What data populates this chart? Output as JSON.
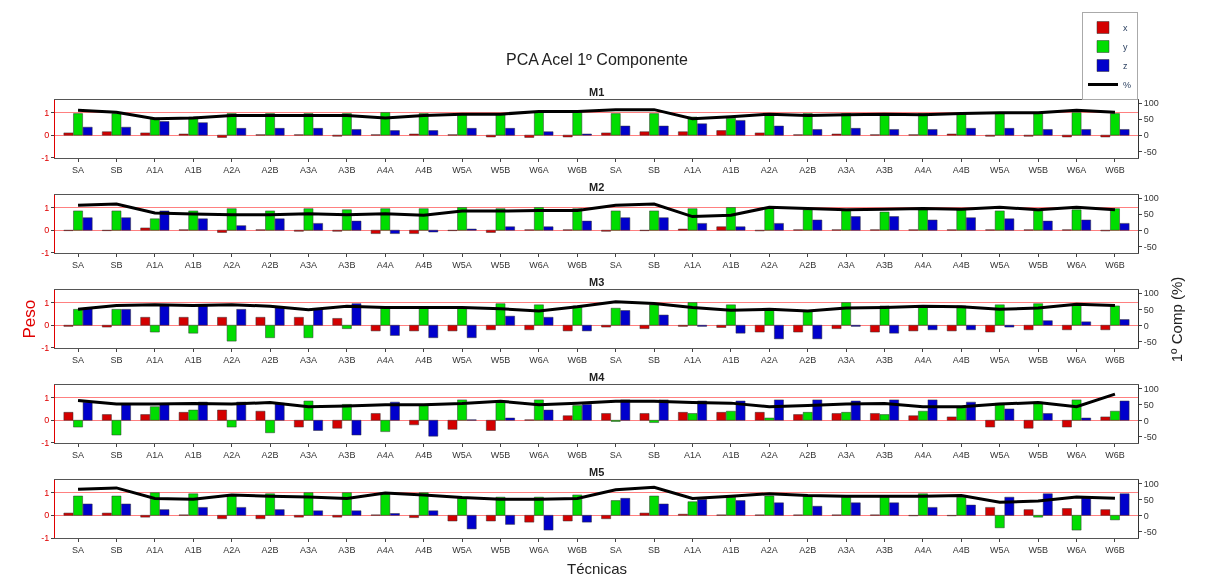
{
  "chart_data": [
    {
      "type": "bar",
      "title": "PCA Acel 1º Componente",
      "subtitle": "M1",
      "legend": "top right",
      "grid": "y",
      "ylim": [
        -1,
        1.55
      ],
      "yticks": [
        -1,
        0,
        1
      ],
      "y2lim": [
        -70,
        110
      ],
      "y2ticks": [
        -50,
        0,
        50,
        100
      ],
      "categories": [
        "SA",
        "SB",
        "A1A",
        "A1B",
        "A2A",
        "A2B",
        "A3A",
        "A3B",
        "A4A",
        "A4B",
        "W5A",
        "W5B",
        "W6A",
        "W6B",
        "SA",
        "SB",
        "A1A",
        "A1B",
        "A2A",
        "A2B",
        "A3A",
        "A3B",
        "A4A",
        "A4B",
        "W5A",
        "W5B",
        "W6A",
        "W6B"
      ],
      "series": [
        {
          "name": "x",
          "color": "#d40000",
          "values": [
            0.1,
            0.15,
            0.1,
            0.05,
            -0.1,
            0.02,
            0.02,
            -0.05,
            0.02,
            0.05,
            0.02,
            -0.08,
            -0.1,
            -0.08,
            0.1,
            0.15,
            0.15,
            0.2,
            0.1,
            0.02,
            0.05,
            0.02,
            0.02,
            0.05,
            -0.05,
            -0.05,
            -0.08,
            -0.08
          ]
        },
        {
          "name": "y",
          "color": "#00dd00",
          "values": [
            0.95,
            0.95,
            0.75,
            0.8,
            0.95,
            0.95,
            0.95,
            0.95,
            1.0,
            0.95,
            0.95,
            0.95,
            1.0,
            1.0,
            0.95,
            0.95,
            0.8,
            0.75,
            0.95,
            0.95,
            0.95,
            0.95,
            0.95,
            0.95,
            0.95,
            0.95,
            1.0,
            0.95
          ]
        },
        {
          "name": "z",
          "color": "#0000cc",
          "values": [
            0.35,
            0.35,
            0.6,
            0.55,
            0.3,
            0.3,
            0.3,
            0.25,
            0.2,
            0.2,
            0.3,
            0.3,
            0.15,
            0.05,
            0.4,
            0.4,
            0.5,
            0.65,
            0.4,
            0.25,
            0.3,
            0.25,
            0.25,
            0.3,
            0.3,
            0.25,
            0.25,
            0.25
          ]
        },
        {
          "name": "%",
          "color": "#000000",
          "type": "line",
          "axis": "y2",
          "values": [
            78,
            72,
            52,
            54,
            62,
            62,
            62,
            62,
            54,
            62,
            66,
            66,
            74,
            74,
            80,
            80,
            52,
            58,
            66,
            62,
            64,
            66,
            64,
            68,
            70,
            70,
            78,
            72
          ]
        }
      ]
    },
    {
      "type": "bar",
      "subtitle": "M2",
      "grid": "y",
      "ylim": [
        -1,
        1.55
      ],
      "yticks": [
        -1,
        0,
        1
      ],
      "y2lim": [
        -70,
        110
      ],
      "y2ticks": [
        -50,
        0,
        50,
        100
      ],
      "categories": [
        "SA",
        "SB",
        "A1A",
        "A1B",
        "A2A",
        "A2B",
        "A3A",
        "A3B",
        "A4A",
        "A4B",
        "W5A",
        "W5B",
        "W6A",
        "W6B",
        "SA",
        "SB",
        "A1A",
        "A1B",
        "A2A",
        "A2B",
        "A3A",
        "A3B",
        "A4A",
        "A4B",
        "W5A",
        "W5B",
        "W6A",
        "W6B"
      ],
      "series": [
        {
          "color": "#d40000",
          "values": [
            -0.02,
            -0.02,
            0.1,
            0.02,
            -0.1,
            0.02,
            -0.05,
            -0.05,
            -0.15,
            -0.15,
            -0.02,
            -0.1,
            0.02,
            0.02,
            -0.05,
            -0.02,
            0.05,
            0.15,
            -0.03,
            0.02,
            0.02,
            0.02,
            0.02,
            0.02,
            0.02,
            0.02,
            0.02,
            -0.03
          ]
        },
        {
          "color": "#00dd00",
          "values": [
            0.85,
            0.85,
            0.5,
            0.85,
            0.95,
            0.85,
            0.95,
            0.9,
            0.95,
            0.95,
            1.0,
            0.95,
            1.0,
            0.95,
            0.85,
            0.85,
            0.95,
            1.0,
            1.0,
            0.9,
            0.85,
            0.8,
            0.9,
            0.9,
            0.85,
            0.85,
            0.9,
            0.95
          ]
        },
        {
          "color": "#0000cc",
          "values": [
            0.55,
            0.55,
            0.85,
            0.5,
            0.2,
            0.5,
            0.3,
            0.4,
            -0.15,
            -0.08,
            0.05,
            0.15,
            0.15,
            0.4,
            0.55,
            0.55,
            0.3,
            0.15,
            0.3,
            0.45,
            0.6,
            0.6,
            0.45,
            0.55,
            0.5,
            0.4,
            0.45,
            0.3
          ]
        },
        {
          "color": "#000000",
          "type": "line",
          "axis": "y2",
          "values": [
            78,
            82,
            54,
            51,
            49,
            49,
            52,
            49,
            52,
            47,
            60,
            60,
            62,
            62,
            78,
            82,
            43,
            47,
            72,
            68,
            64,
            66,
            68,
            66,
            72,
            64,
            72,
            64
          ]
        }
      ]
    },
    {
      "type": "bar",
      "subtitle": "M3",
      "ylabel": "Peso",
      "y2label": "1º Comp (%)",
      "grid": "y",
      "ylim": [
        -1,
        1.55
      ],
      "yticks": [
        -1,
        0,
        1
      ],
      "y2lim": [
        -70,
        110
      ],
      "y2ticks": [
        -50,
        0,
        50,
        100
      ],
      "categories": [
        "SA",
        "SB",
        "A1A",
        "A1B",
        "A2A",
        "A2B",
        "A3A",
        "A3B",
        "A4A",
        "A4B",
        "W5A",
        "W5B",
        "W6A",
        "W6B",
        "SA",
        "SB",
        "A1A",
        "A1B",
        "A2A",
        "A2B",
        "A3A",
        "A3B",
        "A4A",
        "A4B",
        "W5A",
        "W5B",
        "W6A",
        "W6B"
      ],
      "series": [
        {
          "color": "#d40000",
          "values": [
            -0.05,
            -0.08,
            0.35,
            0.35,
            0.35,
            0.35,
            0.35,
            0.3,
            -0.25,
            -0.25,
            -0.25,
            -0.2,
            -0.2,
            -0.25,
            -0.08,
            -0.15,
            -0.05,
            -0.1,
            -0.3,
            -0.3,
            -0.15,
            -0.3,
            -0.25,
            -0.25,
            -0.3,
            -0.2,
            -0.2,
            -0.2
          ]
        },
        {
          "color": "#00dd00",
          "values": [
            0.7,
            0.7,
            -0.3,
            -0.35,
            -0.7,
            -0.55,
            -0.55,
            -0.15,
            0.8,
            0.8,
            0.75,
            0.95,
            0.9,
            0.85,
            0.75,
            0.9,
            1.0,
            0.9,
            0.7,
            0.65,
            1.0,
            0.85,
            0.85,
            0.85,
            0.9,
            0.95,
            0.9,
            0.85
          ]
        },
        {
          "color": "#0000cc",
          "values": [
            0.75,
            0.7,
            0.85,
            0.85,
            0.7,
            0.8,
            0.7,
            0.95,
            -0.45,
            -0.55,
            -0.55,
            0.4,
            0.35,
            -0.25,
            0.65,
            0.45,
            -0.05,
            -0.35,
            -0.6,
            -0.6,
            -0.05,
            -0.35,
            -0.2,
            -0.2,
            -0.08,
            0.2,
            0.15,
            0.25
          ]
        },
        {
          "color": "#000000",
          "type": "line",
          "axis": "y2",
          "values": [
            50,
            62,
            64,
            62,
            64,
            60,
            49,
            60,
            56,
            56,
            56,
            52,
            45,
            58,
            74,
            68,
            56,
            47,
            50,
            45,
            54,
            56,
            60,
            58,
            50,
            54,
            66,
            62
          ]
        }
      ]
    },
    {
      "type": "bar",
      "subtitle": "M4",
      "grid": "y",
      "ylim": [
        -1,
        1.55
      ],
      "yticks": [
        -1,
        0,
        1
      ],
      "y2lim": [
        -70,
        110
      ],
      "y2ticks": [
        -50,
        0,
        50,
        100
      ],
      "categories": [
        "SA",
        "SB",
        "A1A",
        "A1B",
        "A2A",
        "A2B",
        "A3A",
        "A3B",
        "A4A",
        "A4B",
        "W5A",
        "W5B",
        "W6A",
        "W6B",
        "SA",
        "SB",
        "A1A",
        "A1B",
        "A2A",
        "A2B",
        "A3A",
        "A3B",
        "A4A",
        "A4B",
        "W5A",
        "W5B",
        "W6A",
        "W6B"
      ],
      "series": [
        {
          "color": "#d40000",
          "values": [
            0.35,
            0.25,
            0.25,
            0.35,
            0.45,
            0.4,
            -0.3,
            -0.35,
            0.3,
            -0.2,
            -0.4,
            -0.45,
            0.02,
            0.2,
            0.3,
            0.3,
            0.35,
            0.35,
            0.35,
            0.25,
            0.3,
            0.3,
            0.2,
            0.15,
            -0.3,
            -0.35,
            -0.3,
            0.15
          ]
        },
        {
          "color": "#00dd00",
          "values": [
            -0.3,
            -0.65,
            0.6,
            0.45,
            -0.3,
            -0.55,
            0.85,
            0.7,
            -0.5,
            0.65,
            0.9,
            0.85,
            0.9,
            0.65,
            -0.05,
            -0.1,
            0.3,
            0.4,
            0.1,
            0.35,
            0.35,
            0.25,
            0.4,
            0.55,
            0.75,
            0.8,
            0.9,
            0.4
          ]
        },
        {
          "color": "#0000cc",
          "values": [
            0.8,
            0.7,
            0.7,
            0.8,
            0.8,
            0.75,
            -0.45,
            -0.65,
            0.8,
            -0.7,
            0.02,
            0.1,
            0.45,
            0.7,
            0.9,
            0.9,
            0.85,
            0.85,
            0.9,
            0.9,
            0.85,
            0.9,
            0.9,
            0.8,
            0.5,
            0.3,
            0.1,
            0.85
          ]
        },
        {
          "color": "#000000",
          "type": "line",
          "axis": "y2",
          "values": [
            62,
            51,
            51,
            53,
            51,
            56,
            43,
            45,
            49,
            49,
            53,
            60,
            49,
            54,
            60,
            60,
            56,
            54,
            43,
            47,
            51,
            53,
            43,
            43,
            51,
            56,
            43,
            82
          ]
        }
      ]
    },
    {
      "type": "bar",
      "subtitle": "M5",
      "xlabel": "Técnicas",
      "grid": "y",
      "ylim": [
        -1,
        1.55
      ],
      "yticks": [
        -1,
        0,
        1
      ],
      "y2lim": [
        -70,
        110
      ],
      "y2ticks": [
        -50,
        0,
        50,
        100
      ],
      "categories": [
        "SA",
        "SB",
        "A1A",
        "A1B",
        "A2A",
        "A2B",
        "A3A",
        "A3B",
        "A4A",
        "A4B",
        "W5A",
        "W5B",
        "W6A",
        "W6B",
        "SA",
        "SB",
        "A1A",
        "A1B",
        "A2A",
        "A2B",
        "A3A",
        "A3B",
        "A4A",
        "A4B",
        "W5A",
        "W5B",
        "W6A",
        "W6B"
      ],
      "series": [
        {
          "color": "#d40000",
          "values": [
            0.1,
            0.1,
            -0.08,
            0.02,
            -0.15,
            -0.15,
            -0.08,
            -0.08,
            0.02,
            -0.1,
            -0.25,
            -0.25,
            -0.3,
            -0.25,
            -0.15,
            0.1,
            0.05,
            0.02,
            0.02,
            0.02,
            0.02,
            0.02,
            -0.02,
            -0.02,
            0.35,
            0.25,
            0.3,
            0.25
          ]
        },
        {
          "color": "#00dd00",
          "values": [
            0.85,
            0.85,
            1.0,
            0.95,
            0.9,
            0.95,
            1.0,
            1.0,
            1.0,
            1.0,
            0.75,
            0.8,
            0.8,
            0.9,
            0.65,
            0.85,
            0.6,
            0.8,
            0.85,
            0.85,
            0.8,
            0.8,
            0.95,
            0.8,
            -0.55,
            -0.08,
            -0.65,
            -0.2
          ]
        },
        {
          "color": "#0000cc",
          "values": [
            0.5,
            0.5,
            0.25,
            0.35,
            0.35,
            0.25,
            0.2,
            0.2,
            0.08,
            0.2,
            -0.6,
            -0.4,
            -0.65,
            -0.3,
            0.75,
            0.5,
            0.7,
            0.65,
            0.55,
            0.4,
            0.55,
            0.55,
            0.35,
            0.45,
            0.8,
            0.95,
            0.8,
            0.95
          ]
        },
        {
          "color": "#000000",
          "type": "line",
          "axis": "y2",
          "values": [
            82,
            86,
            53,
            51,
            64,
            60,
            58,
            53,
            70,
            64,
            56,
            51,
            51,
            53,
            80,
            88,
            53,
            60,
            68,
            62,
            60,
            60,
            60,
            62,
            41,
            45,
            58,
            54
          ]
        }
      ]
    }
  ]
}
